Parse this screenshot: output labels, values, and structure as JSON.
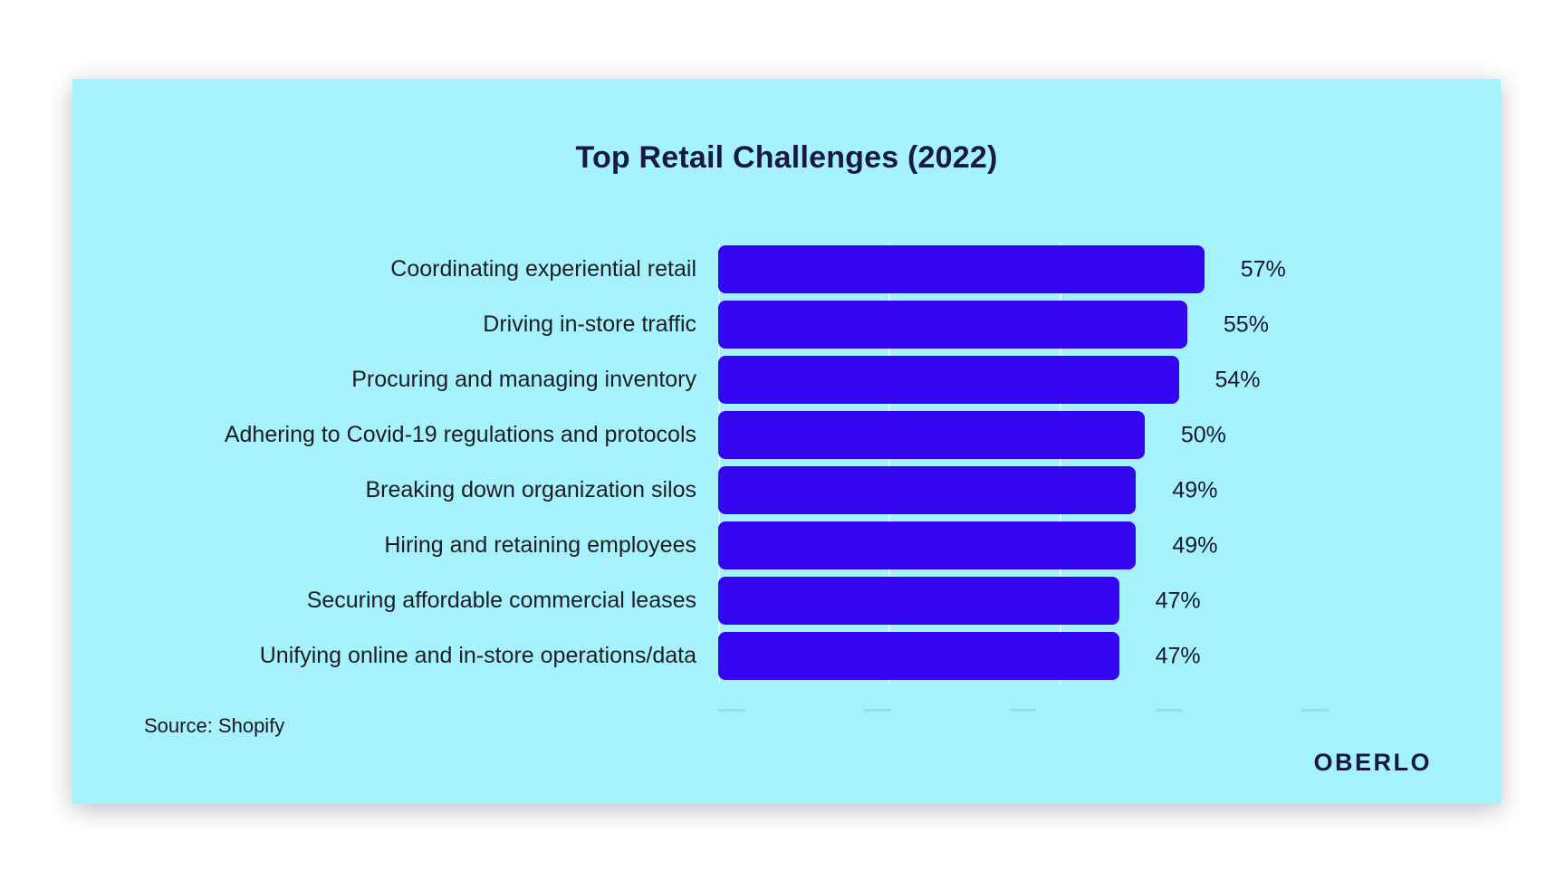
{
  "chart_data": {
    "type": "bar",
    "orientation": "horizontal",
    "title": "Top Retail Challenges (2022)",
    "categories": [
      "Coordinating experiential retail",
      "Driving in-store traffic",
      "Procuring and managing inventory",
      "Adhering to Covid-19 regulations and protocols",
      "Breaking down organization silos",
      "Hiring and retaining employees",
      "Securing affordable commercial leases",
      "Unifying online and in-store operations/data"
    ],
    "values": [
      57,
      55,
      54,
      50,
      49,
      49,
      47,
      47
    ],
    "value_labels": [
      "57%",
      "55%",
      "54%",
      "50%",
      "49%",
      "49%",
      "47%",
      "47%"
    ],
    "xlabel": "",
    "ylabel": "",
    "xlim": [
      0,
      60
    ],
    "gridlines_at_percent": [
      0,
      20,
      40
    ],
    "legend": "none",
    "bar_color": "#3305F0",
    "panel_background": "#A6F2FC",
    "title_color": "#171A46"
  },
  "source": {
    "label": "Source: Shopify"
  },
  "branding": {
    "logo_text": "OBERLO"
  }
}
